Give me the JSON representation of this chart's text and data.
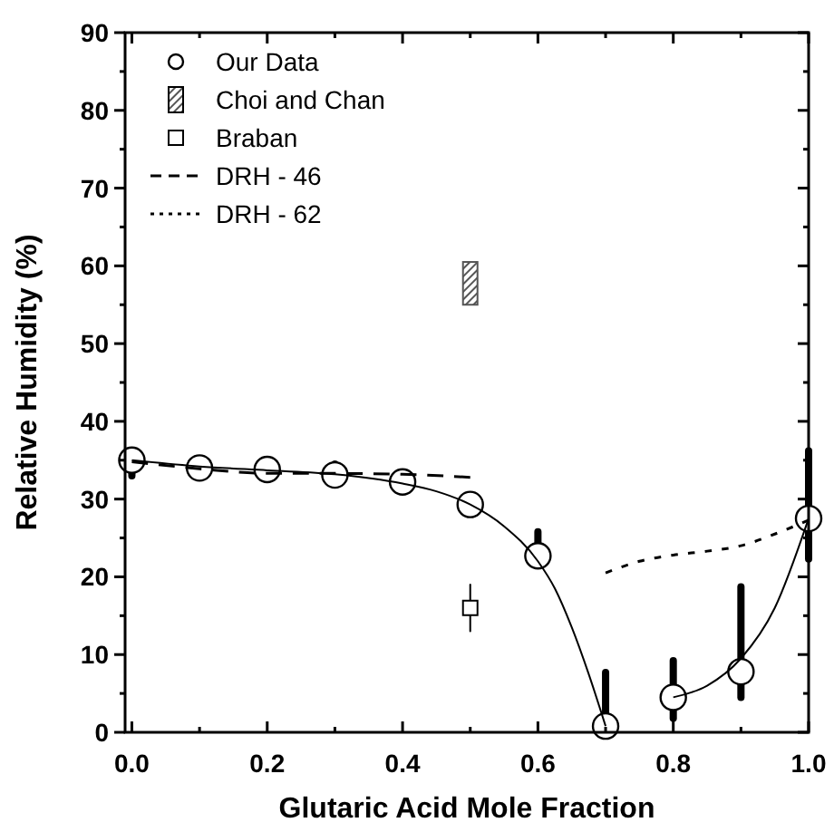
{
  "chart_data": {
    "type": "scatter",
    "xlabel": "Glutaric Acid Mole Fraction",
    "ylabel": "Relative Humidity (%)",
    "xlim": [
      -0.01,
      1.0
    ],
    "ylim": [
      0,
      90
    ],
    "xticks": [
      {
        "value": 0,
        "label": "0.0"
      },
      {
        "value": 0.1,
        "label": null
      },
      {
        "value": 0.2,
        "label": "0.2"
      },
      {
        "value": 0.3,
        "label": null
      },
      {
        "value": 0.4,
        "label": "0.4"
      },
      {
        "value": 0.5,
        "label": null
      },
      {
        "value": 0.6,
        "label": "0.6"
      },
      {
        "value": 0.7,
        "label": null
      },
      {
        "value": 0.8,
        "label": "0.8"
      },
      {
        "value": 0.9,
        "label": null
      },
      {
        "value": 1.0,
        "label": "1.0"
      }
    ],
    "yticks": [
      0,
      {
        "value": 5,
        "label": null
      },
      10,
      {
        "value": 15,
        "label": null
      },
      20,
      {
        "value": 25,
        "label": null
      },
      30,
      {
        "value": 35,
        "label": null
      },
      40,
      {
        "value": 45,
        "label": null
      },
      50,
      {
        "value": 55,
        "label": null
      },
      60,
      {
        "value": 65,
        "label": null
      },
      70,
      {
        "value": 75,
        "label": null
      },
      80,
      {
        "value": 85,
        "label": null
      },
      90
    ],
    "grid": false,
    "legend": "top left",
    "series": [
      {
        "name": "Our Data",
        "marker": "circle",
        "color": "#000000",
        "x": [
          0,
          0.1,
          0.2,
          0.3,
          0.4,
          0.5,
          0.6,
          0.7,
          0.8,
          0.9,
          1.0
        ],
        "values": [
          35,
          34,
          33.8,
          33.1,
          32.2,
          29.3,
          22.7,
          0.8,
          4.5,
          7.8,
          27.5
        ],
        "errors": [
          [
            33,
            35.5
          ],
          null,
          [
            33.8,
            35
          ],
          [
            33.1,
            34.5
          ],
          null,
          [
            29.3,
            30.5
          ],
          [
            22.7,
            25.8
          ],
          [
            0.8,
            7.7
          ],
          [
            1.8,
            9.2
          ],
          [
            4.5,
            18.7
          ],
          [
            22.3,
            36.2
          ]
        ]
      },
      {
        "name": "Choi and Chan",
        "type": "bar",
        "color": "#555555",
        "x": [
          0.5
        ],
        "base": [
          55
        ],
        "values": [
          5.5
        ]
      },
      {
        "name": "Braban",
        "marker": "square",
        "color": "#000000",
        "x": [
          0.5
        ],
        "values": [
          16
        ],
        "errors": [
          [
            13,
            19
          ]
        ]
      },
      {
        "name": "DRH - 46",
        "type": "line",
        "line_style": "dashed",
        "color": "#000000",
        "x": [
          0,
          0.1,
          0.2,
          0.3,
          0.4,
          0.5
        ],
        "values": [
          34.8,
          33.9,
          33.3,
          33.3,
          33.2,
          32.8
        ]
      },
      {
        "name": "DRH - 62",
        "type": "line",
        "line_style": "dotted",
        "color": "#000000",
        "x": [
          0.7,
          0.75,
          0.8,
          0.85,
          0.9,
          0.95,
          1.0
        ],
        "values": [
          20.5,
          22,
          22.8,
          23.3,
          24,
          25.5,
          27.3
        ]
      },
      {
        "type": "line",
        "line_style": "solid",
        "color": "#000000",
        "x": [
          0,
          0.1,
          0.2,
          0.3,
          0.4,
          0.45,
          0.5,
          0.55,
          0.6,
          0.625,
          0.65,
          0.675,
          0.7,
          0.75,
          0.8,
          0.85,
          0.9,
          0.95,
          1.0
        ],
        "values": [
          35,
          34.2,
          33.7,
          33.2,
          32,
          31,
          29.3,
          26.5,
          22,
          18.5,
          13.5,
          7.5,
          0.8,
          null,
          4.5,
          6,
          9.5,
          16,
          27.5
        ]
      }
    ]
  }
}
